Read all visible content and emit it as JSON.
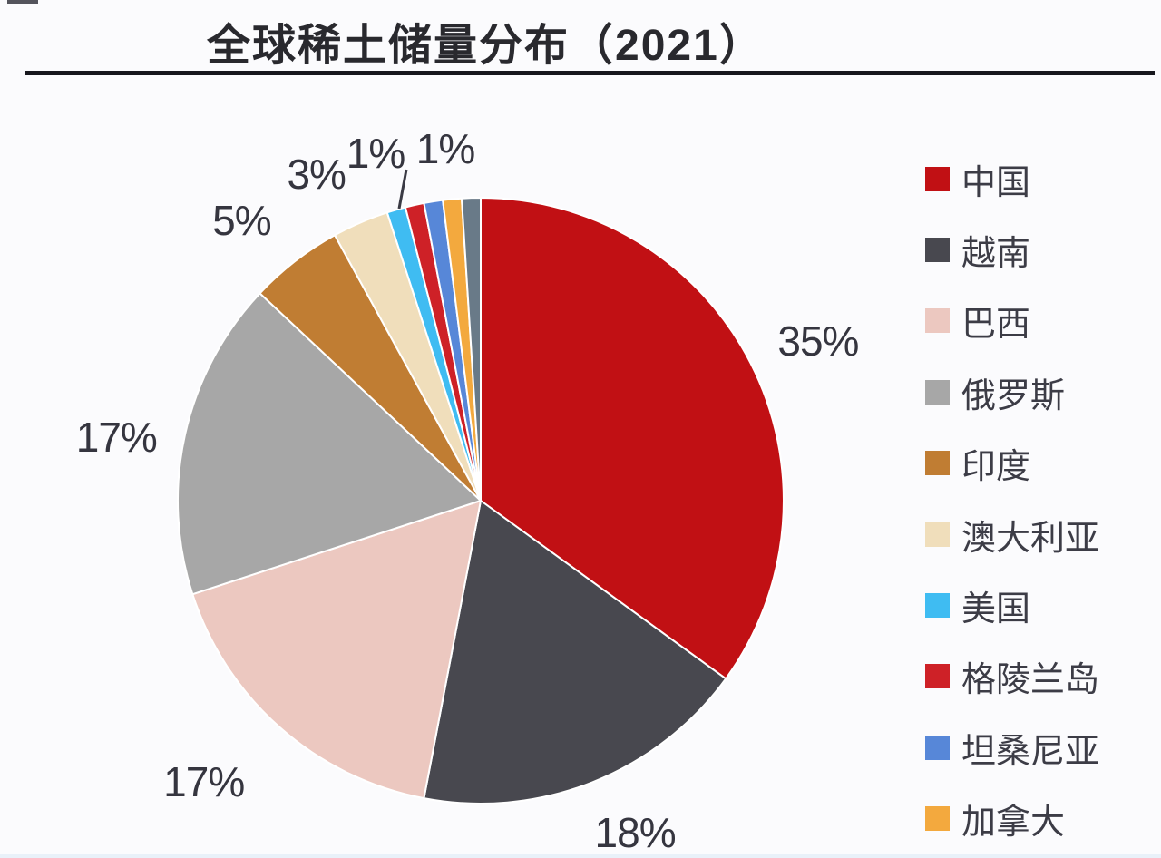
{
  "header": {
    "title": "全球稀土储量分布（2021）"
  },
  "colors": {
    "background": "#fbfbfd",
    "title_text": "#29292e",
    "underline": "#17171d",
    "percent_label_text": "#35353f",
    "legend_text": "#3c3c46",
    "slice_border": "#ffffff"
  },
  "chart_data": {
    "type": "pie",
    "title": "全球稀土储量分布（2021）",
    "legend_position": "right",
    "start_angle_deg_from_top": 0,
    "direction": "clockwise",
    "slices": [
      {
        "label": "中国",
        "value": 35,
        "pct_label": "35%",
        "color": "#c11014"
      },
      {
        "label": "越南",
        "value": 18,
        "pct_label": "18%",
        "color": "#48484f"
      },
      {
        "label": "巴西",
        "value": 17,
        "pct_label": "17%",
        "color": "#ecc8c0"
      },
      {
        "label": "俄罗斯",
        "value": 17,
        "pct_label": "17%",
        "color": "#a7a7a7"
      },
      {
        "label": "印度",
        "value": 5,
        "pct_label": "5%",
        "color": "#c07d33"
      },
      {
        "label": "澳大利亚",
        "value": 3,
        "pct_label": "3%",
        "color": "#f0debb"
      },
      {
        "label": "美国",
        "value": 1,
        "pct_label": "1%",
        "color": "#3fbcf2",
        "leader_line": true
      },
      {
        "label": "格陵兰岛",
        "value": 1,
        "pct_label": "1%",
        "color": "#ce2127"
      },
      {
        "label": "坦桑尼亚",
        "value": 1,
        "pct_label": "",
        "color": "#5787d8"
      },
      {
        "label": "加拿大",
        "value": 1,
        "pct_label": "",
        "color": "#f3a93e"
      },
      {
        "label": "",
        "value": 1,
        "pct_label": "",
        "color": "#697a88",
        "in_legend": false
      }
    ]
  }
}
